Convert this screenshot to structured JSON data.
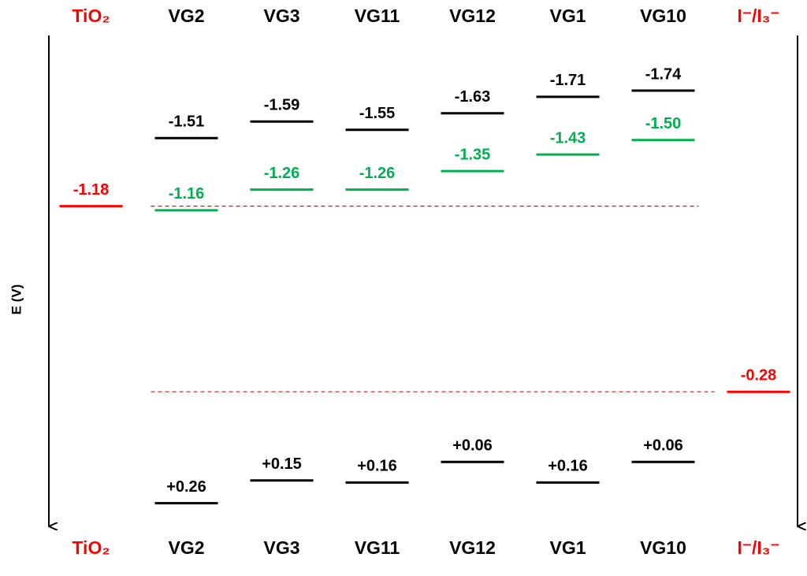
{
  "chart_data": {
    "type": "levels",
    "y_label": "E (V)",
    "categories": [
      "TiO₂",
      "VG2",
      "VG3",
      "VG11",
      "VG12",
      "VG1",
      "VG10",
      "I⁻/I₃⁻"
    ],
    "category_colors": [
      "#ff0000",
      "#000000",
      "#000000",
      "#000000",
      "#000000",
      "#000000",
      "#000000",
      "#ff0000"
    ],
    "ylim": [
      -1.95,
      0.38
    ],
    "inverted_axis": true,
    "series": [
      {
        "color": "#000000",
        "values": [
          null,
          -1.51,
          -1.59,
          -1.55,
          -1.63,
          -1.71,
          -1.74,
          null
        ]
      },
      {
        "color": "#00b050",
        "values": [
          null,
          -1.16,
          -1.26,
          -1.26,
          -1.35,
          -1.43,
          -1.5,
          null
        ],
        "value_labels": [
          null,
          null,
          null,
          null,
          null,
          null,
          "-1.50",
          null
        ]
      },
      {
        "color": "#000000",
        "values": [
          null,
          0.26,
          0.15,
          0.16,
          0.06,
          0.16,
          0.06,
          null
        ],
        "value_labels": [
          null,
          "+0.26",
          "+0.15",
          "+0.16",
          "+0.06",
          "+0.16",
          "+0.06",
          null
        ]
      },
      {
        "color": "#ff0000",
        "values": [
          -1.18,
          null,
          null,
          null,
          null,
          null,
          null,
          -0.28
        ],
        "dashed": true
      }
    ]
  }
}
